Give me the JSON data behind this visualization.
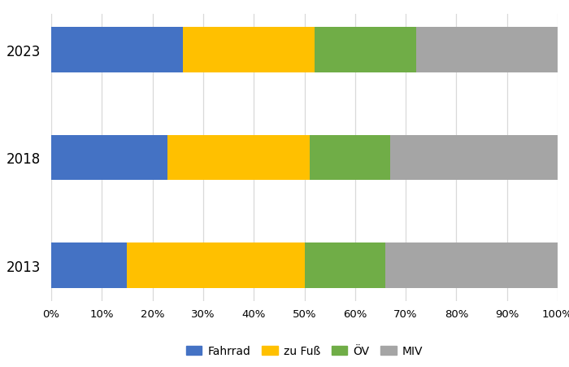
{
  "years": [
    "2013",
    "2018",
    "2023"
  ],
  "series": {
    "Fahrrad": [
      15,
      23,
      26
    ],
    "zu Fuß": [
      35,
      28,
      26
    ],
    "ÖV": [
      16,
      16,
      20
    ],
    "MIV": [
      34,
      33,
      28
    ]
  },
  "colors": {
    "Fahrrad": "#4472C4",
    "zu Fuß": "#FFC000",
    "ÖV": "#70AD47",
    "MIV": "#A5A5A5"
  },
  "xlim": [
    0,
    100
  ],
  "xticks": [
    0,
    10,
    20,
    30,
    40,
    50,
    60,
    70,
    80,
    90,
    100
  ],
  "xtick_labels": [
    "0%",
    "10%",
    "20%",
    "30%",
    "40%",
    "50%",
    "60%",
    "70%",
    "80%",
    "90%",
    "100%"
  ],
  "background_color": "#FFFFFF",
  "bar_height": 0.42,
  "legend_order": [
    "Fahrrad",
    "zu Fuß",
    "ÖV",
    "MIV"
  ],
  "grid_color": "#D9D9D9",
  "figsize": [
    7.0,
    4.52
  ],
  "dpi": 100
}
